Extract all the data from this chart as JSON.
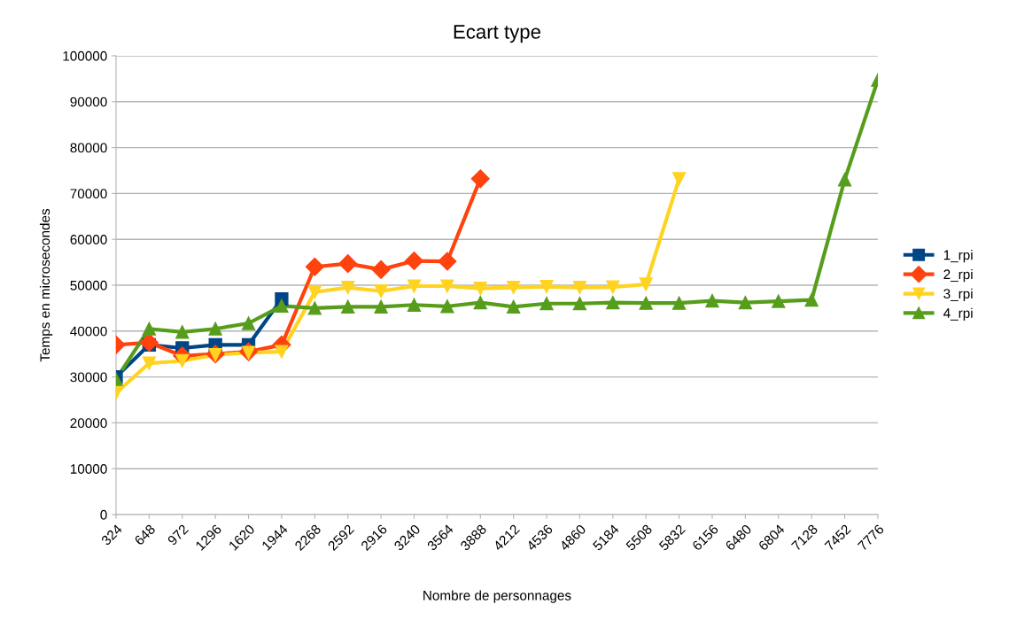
{
  "chart_data": {
    "type": "line",
    "title": "Ecart type",
    "xlabel": "Nombre de personnages",
    "ylabel": "Temps en microsecondes",
    "categories": [
      "324",
      "648",
      "972",
      "1296",
      "1620",
      "1944",
      "2268",
      "2592",
      "2916",
      "3240",
      "3564",
      "3888",
      "4212",
      "4536",
      "4860",
      "5184",
      "5508",
      "5832",
      "6156",
      "6480",
      "6804",
      "7128",
      "7452",
      "7776"
    ],
    "series": [
      {
        "name": "1_rpi",
        "color": "#004586",
        "marker": "square",
        "values": [
          30000,
          37000,
          36300,
          37000,
          37000,
          47000,
          null,
          null,
          null,
          null,
          null,
          null,
          null,
          null,
          null,
          null,
          null,
          null,
          null,
          null,
          null,
          null,
          null,
          null
        ]
      },
      {
        "name": "2_rpi",
        "color": "#ff420e",
        "marker": "diamond",
        "values": [
          37000,
          37500,
          34600,
          35000,
          35500,
          37000,
          54000,
          54700,
          53400,
          55300,
          55200,
          73200,
          null,
          null,
          null,
          null,
          null,
          null,
          null,
          null,
          null,
          null,
          null,
          null
        ]
      },
      {
        "name": "3_rpi",
        "color": "#ffd320",
        "marker": "triangle_down",
        "values": [
          26500,
          33000,
          33500,
          34800,
          35300,
          35500,
          48500,
          49500,
          48700,
          49800,
          49800,
          49300,
          49500,
          49700,
          49500,
          49600,
          50200,
          73200,
          null,
          null,
          null,
          null,
          null,
          null
        ]
      },
      {
        "name": "4_rpi",
        "color": "#579d1c",
        "marker": "triangle",
        "values": [
          29500,
          40500,
          39800,
          40500,
          41700,
          45500,
          45000,
          45300,
          45300,
          45700,
          45400,
          46200,
          45300,
          46000,
          46000,
          46200,
          46100,
          46100,
          46600,
          46200,
          46500,
          46800,
          73000,
          94700
        ]
      }
    ],
    "ylim": [
      0,
      100000
    ],
    "yticks": [
      0,
      10000,
      20000,
      30000,
      40000,
      50000,
      60000,
      70000,
      80000,
      90000,
      100000
    ],
    "grid": "y",
    "legend": "right",
    "line_style": "solid"
  }
}
